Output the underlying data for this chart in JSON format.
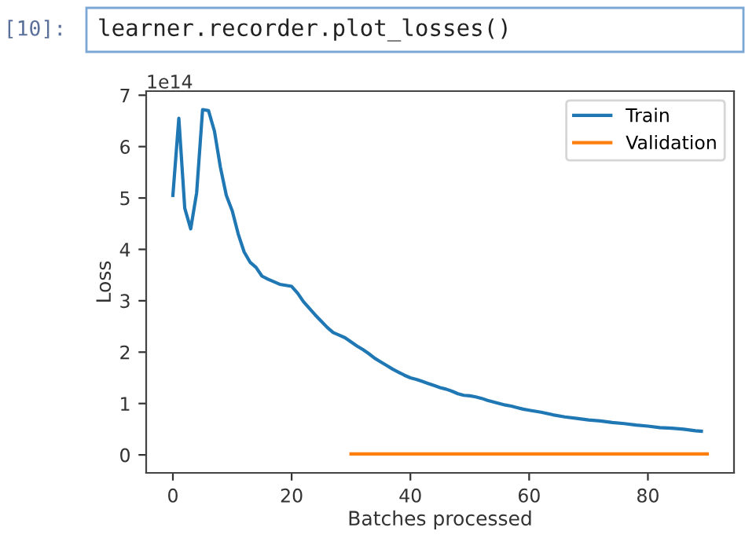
{
  "chart_data": {
    "type": "line",
    "xlabel": "Batches processed",
    "ylabel": "Loss",
    "annotations": [
      "[10]:",
      "learner.recorder.plot_losses()",
      "1e14"
    ],
    "xlim": [
      -4.5,
      94.5
    ],
    "ylim": [
      -0.35,
      7.08
    ],
    "xticks": [
      0,
      20,
      40,
      60,
      80
    ],
    "yticks": [
      0,
      1,
      2,
      3,
      4,
      5,
      6,
      7
    ],
    "legend": "top right",
    "grid": false,
    "marker": "none",
    "line_style": "solid",
    "series": [
      {
        "name": "Train",
        "color": "#1f77b4",
        "x": [
          0,
          1,
          2,
          3,
          4,
          5,
          6,
          7,
          8,
          9,
          10,
          11,
          12,
          13,
          14,
          15,
          16,
          17,
          18,
          19,
          20,
          21,
          22,
          23,
          24,
          25,
          26,
          27,
          28,
          29,
          30,
          31,
          32,
          33,
          34,
          35,
          36,
          37,
          38,
          39,
          40,
          41,
          42,
          43,
          44,
          45,
          46,
          47,
          48,
          49,
          50,
          51,
          52,
          53,
          54,
          55,
          56,
          57,
          58,
          59,
          60,
          62,
          64,
          66,
          68,
          70,
          72,
          74,
          76,
          78,
          80,
          82,
          84,
          86,
          88,
          89
        ],
        "values": [
          5.05,
          6.55,
          4.8,
          4.4,
          5.1,
          6.72,
          6.7,
          6.3,
          5.6,
          5.05,
          4.75,
          4.3,
          3.95,
          3.75,
          3.65,
          3.48,
          3.42,
          3.37,
          3.32,
          3.3,
          3.28,
          3.15,
          2.98,
          2.85,
          2.72,
          2.6,
          2.48,
          2.38,
          2.33,
          2.28,
          2.2,
          2.12,
          2.05,
          1.97,
          1.88,
          1.81,
          1.74,
          1.67,
          1.61,
          1.55,
          1.5,
          1.47,
          1.43,
          1.39,
          1.35,
          1.31,
          1.28,
          1.24,
          1.19,
          1.16,
          1.15,
          1.13,
          1.1,
          1.06,
          1.03,
          1.0,
          0.97,
          0.95,
          0.92,
          0.89,
          0.87,
          0.83,
          0.78,
          0.74,
          0.71,
          0.68,
          0.66,
          0.63,
          0.61,
          0.58,
          0.56,
          0.53,
          0.52,
          0.5,
          0.47,
          0.46
        ]
      },
      {
        "name": "Validation",
        "color": "#ff7f0e",
        "x": [
          30,
          90
        ],
        "values": [
          0.02,
          0.02
        ]
      }
    ]
  }
}
